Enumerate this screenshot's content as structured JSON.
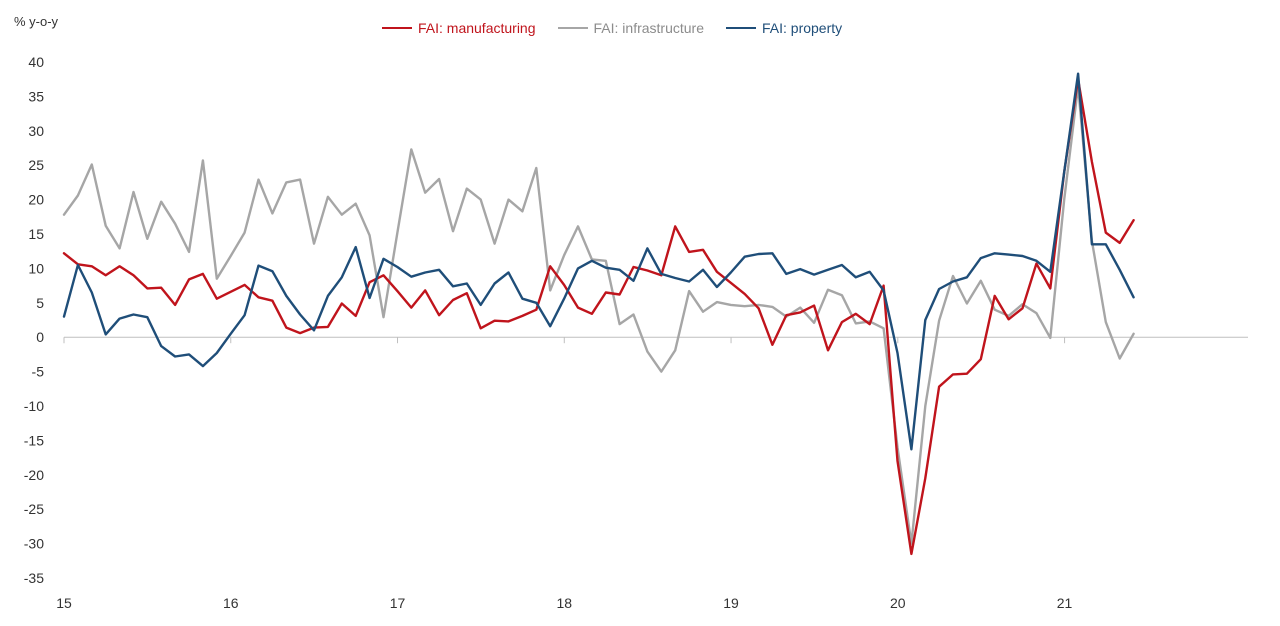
{
  "chart_data": {
    "type": "line",
    "ylabel": "% y-o-y",
    "ylim": [
      -35,
      40
    ],
    "yticks": [
      40,
      35,
      30,
      25,
      20,
      15,
      10,
      5,
      0,
      -5,
      -10,
      -15,
      -20,
      -25,
      -30,
      -35
    ],
    "xlim": [
      2015.0,
      2022.1
    ],
    "xticks": [
      {
        "value": 2015,
        "label": "15"
      },
      {
        "value": 2016,
        "label": "16"
      },
      {
        "value": 2017,
        "label": "17"
      },
      {
        "value": 2018,
        "label": "18"
      },
      {
        "value": 2019,
        "label": "19"
      },
      {
        "value": 2020,
        "label": "20"
      },
      {
        "value": 2021,
        "label": "21"
      }
    ],
    "legend_position": "top-center",
    "grid": false,
    "series": [
      {
        "name": "FAI: manufacturing",
        "color": "#c0141c",
        "start": 2015.0,
        "step": 0.0833,
        "values": [
          12.2,
          10.6,
          10.3,
          9.0,
          10.3,
          9.0,
          7.1,
          7.2,
          4.7,
          8.4,
          9.2,
          5.6,
          6.6,
          7.6,
          5.8,
          5.3,
          1.4,
          0.6,
          1.4,
          1.5,
          4.9,
          3.1,
          8.0,
          9.0,
          6.7,
          4.3,
          6.8,
          3.2,
          5.4,
          6.4,
          1.3,
          2.4,
          2.3,
          3.1,
          4.0,
          10.3,
          7.6,
          4.3,
          3.4,
          6.5,
          6.2,
          10.2,
          9.7,
          9.0,
          16.1,
          12.4,
          12.7,
          9.5,
          7.9,
          6.3,
          4.2,
          -1.1,
          3.2,
          3.6,
          4.6,
          -1.9,
          2.2,
          3.4,
          1.9,
          7.5,
          -18.0,
          -31.5,
          -20.5,
          -7.2,
          -5.4,
          -5.3,
          -3.2,
          6.0,
          2.6,
          4.2,
          10.7,
          7.1,
          24.0,
          37.5,
          25.5,
          15.2,
          13.7,
          17.0
        ]
      },
      {
        "name": "FAI: infrastructure",
        "color": "#a6a6a6",
        "start": 2015.0,
        "step": 0.0833,
        "values": [
          17.8,
          20.6,
          25.1,
          16.2,
          12.9,
          21.1,
          14.3,
          19.7,
          16.5,
          12.4,
          25.7,
          8.5,
          11.8,
          15.2,
          22.9,
          18.0,
          22.5,
          22.9,
          13.6,
          20.4,
          17.8,
          19.4,
          14.8,
          2.9,
          15.2,
          27.3,
          21.0,
          23.0,
          15.4,
          21.6,
          20.0,
          13.6,
          20.0,
          18.3,
          24.6,
          6.8,
          11.9,
          16.1,
          11.3,
          11.1,
          1.9,
          3.3,
          -2.1,
          -5.0,
          -1.9,
          6.7,
          3.7,
          5.1,
          4.7,
          4.5,
          4.7,
          4.4,
          3.0,
          4.3,
          2.1,
          6.9,
          6.1,
          2.0,
          2.3,
          1.3,
          -16.0,
          -30.0,
          -10.0,
          2.4,
          8.9,
          4.9,
          8.2,
          4.0,
          3.1,
          4.8,
          3.5,
          -0.1,
          20.0,
          36.5,
          14.0,
          2.2,
          -3.1,
          0.5
        ]
      },
      {
        "name": "FAI: property",
        "color": "#1f4e79",
        "start": 2015.0,
        "step": 0.0833,
        "values": [
          3.0,
          10.5,
          6.5,
          0.4,
          2.7,
          3.3,
          2.9,
          -1.3,
          -2.8,
          -2.5,
          -4.2,
          -2.3,
          0.5,
          3.2,
          10.4,
          9.6,
          6.0,
          3.3,
          1.0,
          6.0,
          8.7,
          13.1,
          5.7,
          11.4,
          10.2,
          8.8,
          9.4,
          9.8,
          7.4,
          7.8,
          4.7,
          7.8,
          9.4,
          5.6,
          5.0,
          1.6,
          5.6,
          10.0,
          11.1,
          10.1,
          9.8,
          8.2,
          12.9,
          9.2,
          8.6,
          8.1,
          9.8,
          7.3,
          9.4,
          11.7,
          12.1,
          12.2,
          9.2,
          9.9,
          9.1,
          9.8,
          10.5,
          8.7,
          9.5,
          6.8,
          -2.3,
          -16.3,
          2.5,
          7.0,
          8.1,
          8.7,
          11.5,
          12.2,
          12.0,
          11.8,
          11.1,
          9.5,
          24.0,
          38.3,
          13.5,
          13.5,
          9.8,
          5.8
        ]
      }
    ]
  }
}
